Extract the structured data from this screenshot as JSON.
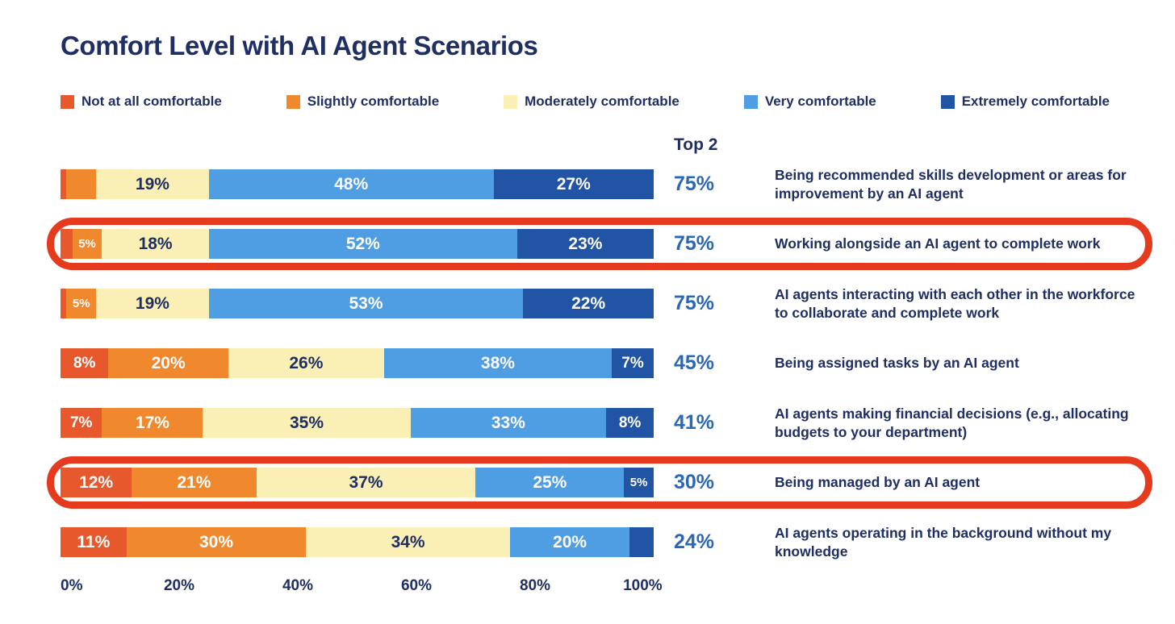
{
  "colors": {
    "not_at_all": "#E7592C",
    "slightly": "#F0892E",
    "moderately": "#FAF0B5",
    "very": "#4F9DE3",
    "extremely": "#2254A6",
    "navy_text": "#1F2E63",
    "top2_blue": "#2A67B7",
    "highlight_red": "#E63A1F"
  },
  "chart_data": {
    "type": "bar",
    "stacked": true,
    "orientation": "horizontal",
    "title": "Comfort Level with AI Agent Scenarios",
    "top2_header": "Top 2",
    "legend_position": "top",
    "x_axis": {
      "range": [
        0,
        100
      ],
      "ticks": [
        "0%",
        "20%",
        "40%",
        "60%",
        "80%",
        "100%"
      ]
    },
    "legend": [
      {
        "key": "not_at_all",
        "label": "Not at all comfortable"
      },
      {
        "key": "slightly",
        "label": "Slightly comfortable"
      },
      {
        "key": "moderately",
        "label": "Moderately comfortable"
      },
      {
        "key": "very",
        "label": "Very comfortable"
      },
      {
        "key": "extremely",
        "label": "Extremely comfortable"
      }
    ],
    "series_keys": [
      "not_at_all",
      "slightly",
      "moderately",
      "very",
      "extremely"
    ],
    "rows": [
      {
        "category": "Being recommended skills development or areas for improvement by an AI agent",
        "values": [
          1,
          5,
          19,
          48,
          27
        ],
        "segment_labels": [
          "",
          "",
          "19%",
          "48%",
          "27%"
        ],
        "top2": "75%",
        "highlighted": false
      },
      {
        "category": "Working alongside an AI agent to complete work",
        "values": [
          2,
          5,
          18,
          52,
          23
        ],
        "segment_labels": [
          "",
          "5%",
          "18%",
          "52%",
          "23%"
        ],
        "top2": "75%",
        "highlighted": true
      },
      {
        "category": "AI agents interacting with each other in the workforce to collaborate and complete work",
        "values": [
          1,
          5,
          19,
          53,
          22
        ],
        "segment_labels": [
          "",
          "5%",
          "19%",
          "53%",
          "22%"
        ],
        "top2": "75%",
        "highlighted": false
      },
      {
        "category": "Being assigned tasks by an AI agent",
        "values": [
          8,
          20,
          26,
          38,
          7
        ],
        "segment_labels": [
          "8%",
          "20%",
          "26%",
          "38%",
          "7%"
        ],
        "top2": "45%",
        "highlighted": false
      },
      {
        "category": "AI agents making financial decisions (e.g., allocating budgets to your department)",
        "values": [
          7,
          17,
          35,
          33,
          8
        ],
        "segment_labels": [
          "7%",
          "17%",
          "35%",
          "33%",
          "8%"
        ],
        "top2": "41%",
        "highlighted": false
      },
      {
        "category": "Being managed by an AI agent",
        "values": [
          12,
          21,
          37,
          25,
          5
        ],
        "segment_labels": [
          "12%",
          "21%",
          "37%",
          "25%",
          "5%"
        ],
        "top2": "30%",
        "highlighted": true
      },
      {
        "category": "AI agents operating in the background without my knowledge",
        "values": [
          11,
          30,
          34,
          20,
          4
        ],
        "segment_labels": [
          "11%",
          "30%",
          "34%",
          "20%",
          ""
        ],
        "top2": "24%",
        "highlighted": false
      }
    ]
  }
}
